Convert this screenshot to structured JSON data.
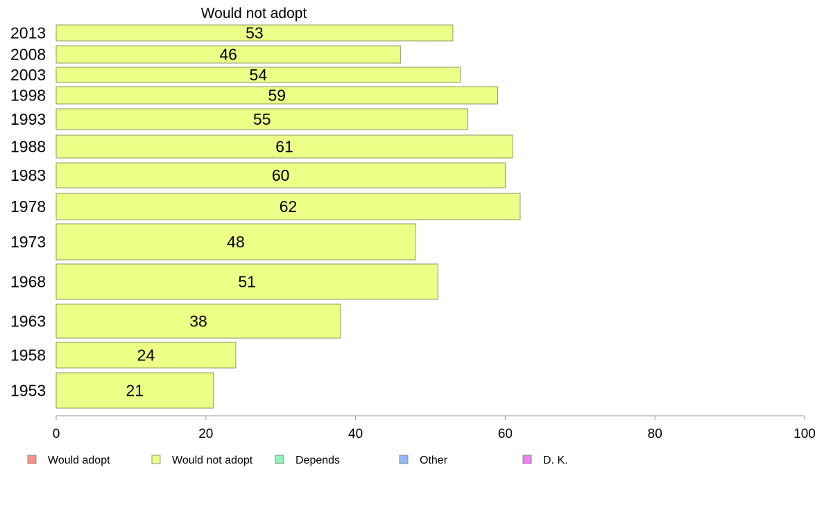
{
  "chart_data": {
    "type": "bar",
    "orientation": "horizontal",
    "title": "Would not adopt",
    "categories": [
      "2013",
      "2008",
      "2003",
      "1998",
      "1993",
      "1988",
      "1983",
      "1978",
      "1973",
      "1968",
      "1963",
      "1958",
      "1953"
    ],
    "series": [
      {
        "name": "Would not adopt",
        "color": "#ecff86",
        "values": [
          53,
          46,
          54,
          59,
          55,
          61,
          60,
          62,
          48,
          51,
          38,
          24,
          21
        ]
      }
    ],
    "xlim": [
      0,
      100
    ],
    "xticks": [
      "0",
      "20",
      "40",
      "60",
      "80",
      "100"
    ],
    "grid": false,
    "legend_position": "bottom",
    "legend": [
      {
        "label": "Would adopt",
        "color": "#f8938a"
      },
      {
        "label": "Would not adopt",
        "color": "#ecff86"
      },
      {
        "label": "Depends",
        "color": "#8ff5b8"
      },
      {
        "label": "Other",
        "color": "#8fb8f5"
      },
      {
        "label": "D. K.",
        "color": "#ee83f5"
      }
    ]
  }
}
